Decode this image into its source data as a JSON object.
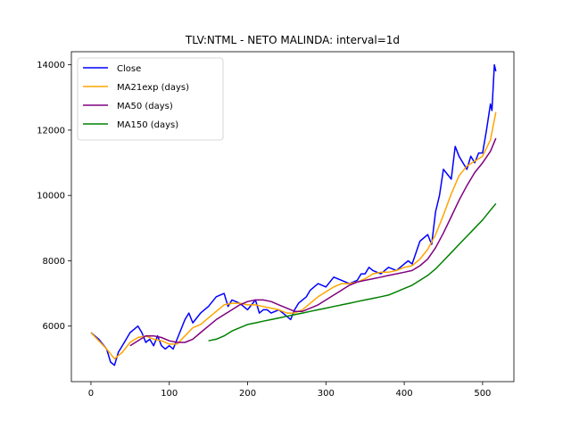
{
  "chart_data": {
    "type": "line",
    "title": "TLV:NTML - NETO MALINDA: interval=1d",
    "xlabel": "",
    "ylabel": "",
    "xlim": [
      -25,
      540
    ],
    "ylim": [
      4300,
      14400
    ],
    "xticks": [
      0,
      100,
      200,
      300,
      400,
      500
    ],
    "yticks": [
      6000,
      8000,
      10000,
      12000,
      14000
    ],
    "grid": false,
    "legend_position": "top-left",
    "series": [
      {
        "name": "Close",
        "color": "#0000ff",
        "x": [
          0,
          10,
          20,
          25,
          30,
          35,
          40,
          45,
          50,
          55,
          60,
          65,
          70,
          75,
          80,
          85,
          90,
          95,
          100,
          105,
          110,
          115,
          120,
          125,
          130,
          140,
          150,
          160,
          170,
          175,
          180,
          190,
          200,
          210,
          215,
          220,
          225,
          230,
          240,
          250,
          255,
          260,
          265,
          270,
          275,
          280,
          290,
          300,
          310,
          320,
          330,
          340,
          345,
          350,
          355,
          360,
          370,
          380,
          390,
          400,
          405,
          410,
          420,
          430,
          435,
          440,
          445,
          450,
          460,
          465,
          470,
          475,
          480,
          485,
          490,
          495,
          500,
          505,
          510,
          512,
          515,
          517
        ],
        "y": [
          5800,
          5600,
          5300,
          4900,
          4800,
          5200,
          5400,
          5600,
          5800,
          5900,
          6000,
          5800,
          5500,
          5600,
          5400,
          5700,
          5400,
          5300,
          5400,
          5300,
          5600,
          5900,
          6200,
          6400,
          6100,
          6400,
          6600,
          6900,
          7000,
          6600,
          6800,
          6700,
          6500,
          6800,
          6400,
          6500,
          6500,
          6400,
          6500,
          6300,
          6200,
          6500,
          6700,
          6800,
          6900,
          7100,
          7300,
          7200,
          7500,
          7400,
          7300,
          7400,
          7600,
          7600,
          7800,
          7700,
          7600,
          7800,
          7700,
          7900,
          8000,
          7900,
          8600,
          8800,
          8500,
          9500,
          10000,
          10800,
          10500,
          11500,
          11200,
          11000,
          10800,
          11200,
          11000,
          11300,
          11300,
          12000,
          12800,
          12600,
          14000,
          13800
        ]
      },
      {
        "name": "MA21exp (days)",
        "color": "#ffa500",
        "x": [
          0,
          10,
          20,
          30,
          40,
          50,
          60,
          70,
          80,
          90,
          100,
          110,
          120,
          130,
          140,
          150,
          160,
          170,
          180,
          190,
          200,
          210,
          220,
          230,
          240,
          250,
          260,
          270,
          280,
          290,
          300,
          310,
          320,
          330,
          340,
          350,
          360,
          370,
          380,
          390,
          400,
          410,
          420,
          430,
          440,
          450,
          460,
          470,
          480,
          490,
          500,
          510,
          517
        ],
        "y": [
          5800,
          5550,
          5300,
          5000,
          5200,
          5500,
          5650,
          5700,
          5600,
          5550,
          5450,
          5450,
          5700,
          5950,
          6050,
          6250,
          6450,
          6650,
          6700,
          6700,
          6650,
          6650,
          6600,
          6550,
          6500,
          6400,
          6400,
          6500,
          6700,
          6900,
          7050,
          7200,
          7300,
          7300,
          7350,
          7450,
          7600,
          7650,
          7650,
          7700,
          7800,
          7850,
          8050,
          8350,
          8800,
          9400,
          10050,
          10600,
          10900,
          11050,
          11200,
          11700,
          12550
        ]
      },
      {
        "name": "MA50 (days)",
        "color": "#800080",
        "x": [
          50,
          60,
          70,
          80,
          90,
          100,
          110,
          120,
          130,
          140,
          150,
          160,
          170,
          180,
          190,
          200,
          210,
          220,
          230,
          240,
          250,
          260,
          270,
          280,
          290,
          300,
          310,
          320,
          330,
          340,
          350,
          360,
          370,
          380,
          390,
          400,
          410,
          420,
          430,
          440,
          450,
          460,
          470,
          480,
          490,
          500,
          510,
          517
        ],
        "y": [
          5400,
          5550,
          5700,
          5700,
          5650,
          5550,
          5500,
          5500,
          5600,
          5800,
          6000,
          6200,
          6350,
          6500,
          6650,
          6750,
          6800,
          6800,
          6750,
          6650,
          6550,
          6450,
          6450,
          6550,
          6650,
          6800,
          6950,
          7100,
          7250,
          7350,
          7400,
          7450,
          7500,
          7550,
          7600,
          7650,
          7700,
          7850,
          8050,
          8400,
          8850,
          9350,
          9850,
          10300,
          10700,
          11000,
          11350,
          11750
        ]
      },
      {
        "name": "MA150 (days)",
        "color": "#008000",
        "x": [
          150,
          160,
          170,
          180,
          190,
          200,
          210,
          220,
          230,
          240,
          250,
          260,
          270,
          280,
          290,
          300,
          310,
          320,
          330,
          340,
          350,
          360,
          370,
          380,
          390,
          400,
          410,
          420,
          430,
          440,
          450,
          460,
          470,
          480,
          490,
          500,
          510,
          517
        ],
        "y": [
          5550,
          5600,
          5700,
          5850,
          5950,
          6050,
          6100,
          6150,
          6200,
          6250,
          6300,
          6350,
          6400,
          6450,
          6500,
          6550,
          6600,
          6650,
          6700,
          6750,
          6800,
          6850,
          6900,
          6950,
          7050,
          7150,
          7250,
          7400,
          7550,
          7750,
          8000,
          8250,
          8500,
          8750,
          9000,
          9250,
          9550,
          9750
        ]
      }
    ]
  }
}
